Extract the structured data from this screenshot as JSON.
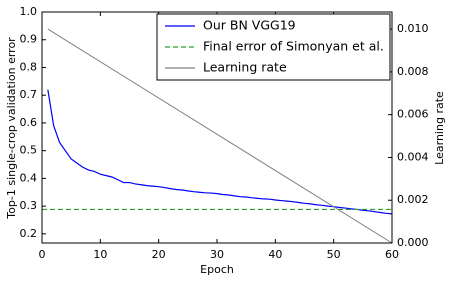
{
  "chart_data": {
    "type": "line",
    "xlabel": "Epoch",
    "ylabel": "Top-1 single-crop validation error",
    "y2label": "Learning rate",
    "xlim": [
      0,
      60
    ],
    "xticks": [
      0,
      10,
      20,
      30,
      40,
      50,
      60
    ],
    "ylim": [
      0.167,
      1.0
    ],
    "yticks": [
      0.2,
      0.3,
      0.4,
      0.5,
      0.6,
      0.7,
      0.8,
      0.9,
      {
        "value": 1,
        "label": "1.0"
      }
    ],
    "y2lim": [
      0,
      0.0108
    ],
    "y2ticks": [
      {
        "value": 0,
        "label": "0.000"
      },
      {
        "value": 0.002,
        "label": "0.002"
      },
      {
        "value": 0.004,
        "label": "0.004"
      },
      {
        "value": 0.006,
        "label": "0.006"
      },
      {
        "value": 0.008,
        "label": "0.008"
      },
      {
        "value": 0.01,
        "label": "0.010"
      }
    ],
    "legend": "upper right",
    "series": [
      {
        "name": "Our BN VGG19",
        "color": "#0000ff",
        "linestyle": "solid",
        "x": [
          1,
          2,
          3,
          4,
          5,
          6,
          7,
          8,
          9,
          10,
          11,
          12,
          13,
          14,
          15,
          16,
          17,
          18,
          19,
          20,
          21,
          22,
          23,
          24,
          25,
          26,
          27,
          28,
          29,
          30,
          31,
          32,
          33,
          34,
          35,
          36,
          37,
          38,
          39,
          40,
          41,
          42,
          43,
          44,
          45,
          46,
          47,
          48,
          49,
          50,
          51,
          52,
          53,
          54,
          55,
          56,
          57,
          58,
          59,
          60
        ],
        "values": [
          0.72,
          0.59,
          0.53,
          0.5,
          0.47,
          0.455,
          0.44,
          0.43,
          0.425,
          0.415,
          0.41,
          0.405,
          0.395,
          0.385,
          0.385,
          0.38,
          0.377,
          0.374,
          0.372,
          0.37,
          0.367,
          0.363,
          0.36,
          0.358,
          0.355,
          0.352,
          0.35,
          0.348,
          0.347,
          0.345,
          0.342,
          0.34,
          0.337,
          0.334,
          0.333,
          0.33,
          0.328,
          0.326,
          0.325,
          0.322,
          0.32,
          0.318,
          0.316,
          0.313,
          0.31,
          0.308,
          0.305,
          0.303,
          0.3,
          0.298,
          0.295,
          0.293,
          0.29,
          0.288,
          0.285,
          0.283,
          0.28,
          0.277,
          0.274,
          0.272
        ]
      },
      {
        "name": "Final error of Simonyan et al.",
        "color": "#2ca02c",
        "linestyle": "dashed",
        "x": [
          0,
          60
        ],
        "values": [
          0.288,
          0.288
        ]
      },
      {
        "name": "Learning rate",
        "color": "#808080",
        "linestyle": "solid",
        "axis": "y2",
        "x": [
          1,
          60
        ],
        "values": [
          0.01,
          0
        ]
      }
    ]
  }
}
